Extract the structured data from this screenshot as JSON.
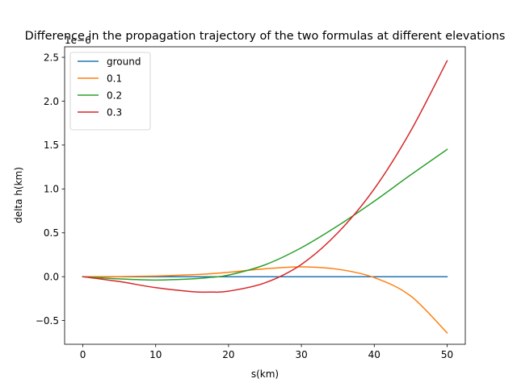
{
  "chart_data": {
    "type": "line",
    "title": "Difference in the propagation trajectory of the two formulas at different elevations",
    "xlabel": "s(km)",
    "ylabel": "delta h(km)",
    "offset_text": "1e−6",
    "xlim": [
      -2.5,
      52.5
    ],
    "ylim": [
      -0.77,
      2.62
    ],
    "xticks": [
      0,
      10,
      20,
      30,
      40,
      50
    ],
    "yticks": [
      -0.5,
      0.0,
      0.5,
      1.0,
      1.5,
      2.0,
      2.5
    ],
    "xtick_labels": [
      "0",
      "10",
      "20",
      "30",
      "40",
      "50"
    ],
    "ytick_labels": [
      "−0.5",
      "0.0",
      "0.5",
      "1.0",
      "1.5",
      "2.0",
      "2.5"
    ],
    "grid": false,
    "legend_position": "top-left",
    "x": [
      0,
      5,
      10,
      15,
      17.5,
      20,
      25,
      30,
      35,
      40,
      45,
      50
    ],
    "series": [
      {
        "name": "ground",
        "color": "#1f77b4",
        "values": [
          0,
          0,
          0,
          0,
          0,
          0,
          0,
          0,
          0,
          0,
          0,
          0
        ]
      },
      {
        "name": "0.1",
        "color": "#ff7f0e",
        "values": [
          0,
          0.001,
          0.008,
          0.022,
          0.034,
          0.05,
          0.09,
          0.112,
          0.085,
          -0.01,
          -0.22,
          -0.64
        ]
      },
      {
        "name": "0.2",
        "color": "#2ca02c",
        "values": [
          0,
          -0.025,
          -0.038,
          -0.025,
          -0.008,
          0.018,
          0.135,
          0.33,
          0.58,
          0.86,
          1.16,
          1.45
        ]
      },
      {
        "name": "0.3",
        "color": "#d62728",
        "values": [
          0,
          -0.055,
          -0.125,
          -0.17,
          -0.175,
          -0.165,
          -0.07,
          0.14,
          0.5,
          1.0,
          1.66,
          2.46
        ]
      }
    ]
  }
}
